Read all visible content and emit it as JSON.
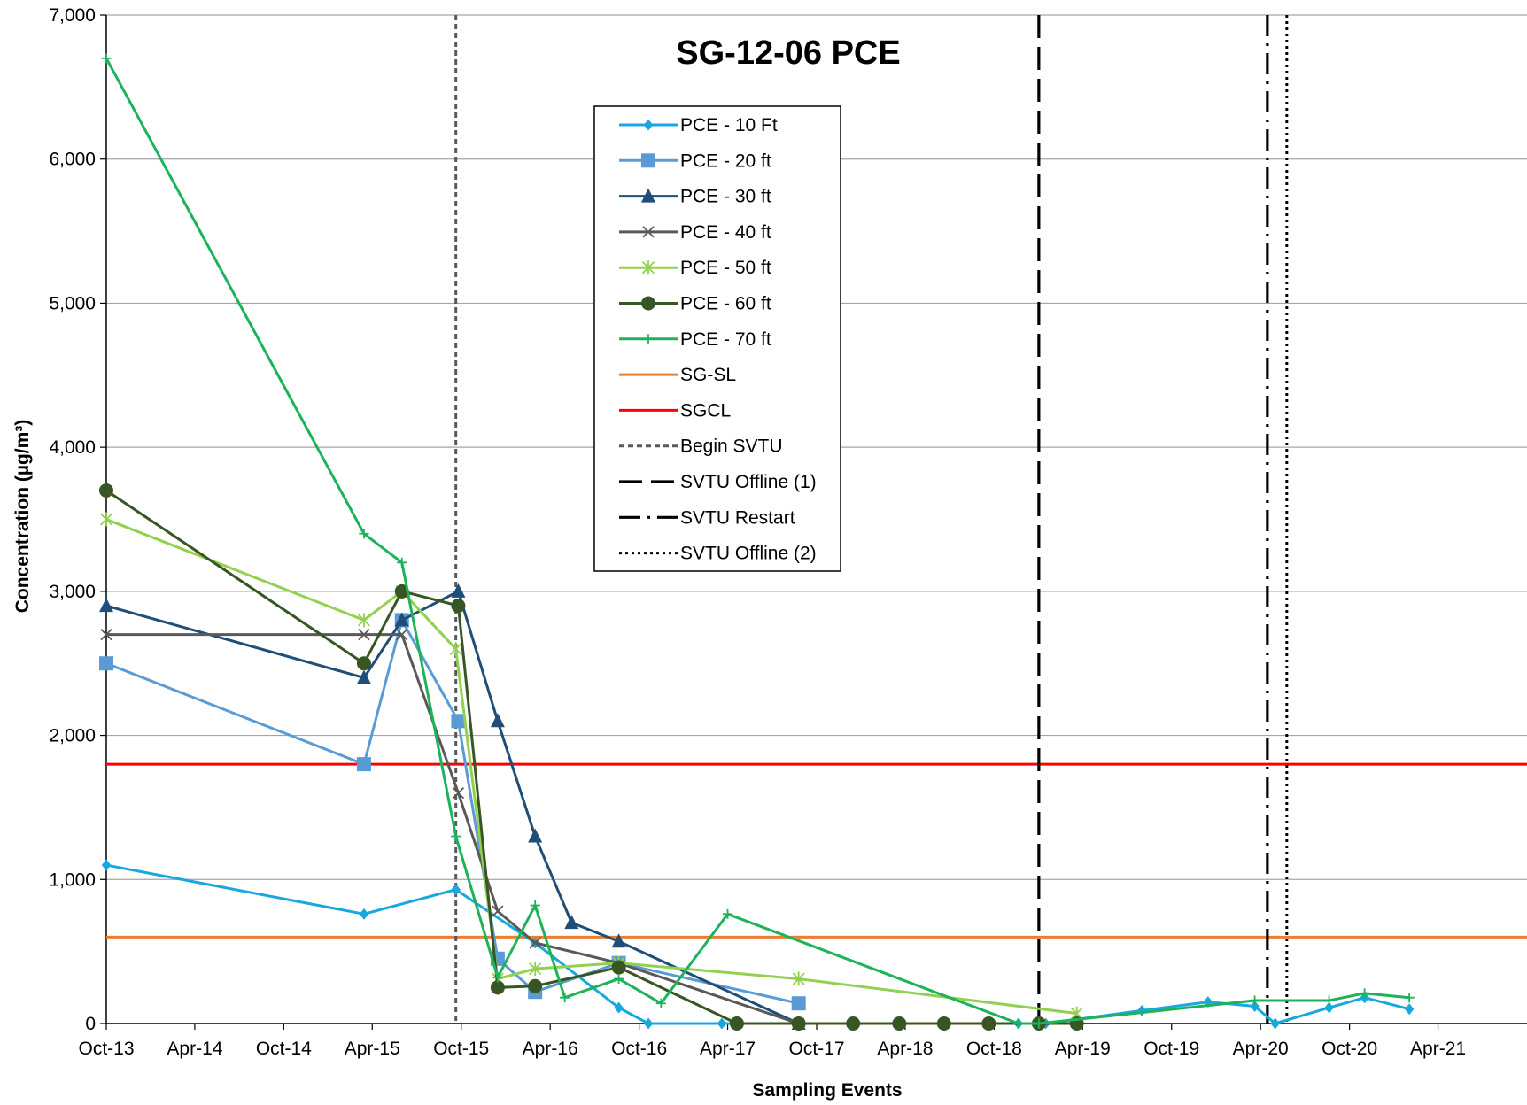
{
  "chart_data": {
    "type": "line",
    "title": "SG-12-06 PCE",
    "xlabel": "Sampling Events",
    "ylabel": "Concentration (µg/m³)",
    "ylim": [
      0,
      7000
    ],
    "yticks": [
      0,
      1000,
      2000,
      3000,
      4000,
      5000,
      6000,
      7000
    ],
    "ytick_labels": [
      "0",
      "1,000",
      "2,000",
      "3,000",
      "4,000",
      "5,000",
      "6,000",
      "7,000"
    ],
    "xlim": [
      "2013-10-01",
      "2021-10-01"
    ],
    "xtick_labels": [
      "Oct-13",
      "Apr-14",
      "Oct-14",
      "Apr-15",
      "Oct-15",
      "Apr-16",
      "Oct-16",
      "Apr-17",
      "Oct-17",
      "Apr-18",
      "Oct-18",
      "Apr-19",
      "Oct-19",
      "Apr-20",
      "Oct-20",
      "Apr-21"
    ],
    "xtick_dates": [
      "2013-10-01",
      "2014-04-01",
      "2014-10-01",
      "2015-04-01",
      "2015-10-01",
      "2016-04-01",
      "2016-10-01",
      "2017-04-01",
      "2017-10-01",
      "2018-04-01",
      "2018-10-01",
      "2019-04-01",
      "2019-10-01",
      "2020-04-01",
      "2020-10-01",
      "2021-04-01"
    ],
    "grid": "horizontal",
    "legend_position": "upper-center",
    "series": [
      {
        "name": "PCE - 10 Ft",
        "color": "#18A8E0",
        "marker": "diamond",
        "points": [
          [
            "2013-10-01",
            1100
          ],
          [
            "2015-03-15",
            760
          ],
          [
            "2015-09-20",
            930
          ],
          [
            "2016-03-01",
            560
          ],
          [
            "2016-08-20",
            110
          ],
          [
            "2016-10-20",
            0
          ],
          [
            "2017-03-20",
            0
          ],
          [
            "2017-08-25",
            0
          ],
          [
            "2018-11-20",
            0
          ],
          [
            "2019-01-15",
            0
          ],
          [
            "2019-08-01",
            90
          ],
          [
            "2019-12-15",
            150
          ],
          [
            "2020-03-20",
            120
          ],
          [
            "2020-05-01",
            0
          ],
          [
            "2020-08-20",
            110
          ],
          [
            "2020-11-01",
            180
          ],
          [
            "2021-02-01",
            100
          ]
        ]
      },
      {
        "name": "PCE - 20 ft",
        "color": "#5B9BD5",
        "marker": "square",
        "points": [
          [
            "2013-10-01",
            2500
          ],
          [
            "2015-03-15",
            1800
          ],
          [
            "2015-06-01",
            2800
          ],
          [
            "2015-09-25",
            2100
          ],
          [
            "2015-12-15",
            450
          ],
          [
            "2016-03-01",
            220
          ],
          [
            "2016-08-20",
            420
          ],
          [
            "2017-08-25",
            140
          ]
        ]
      },
      {
        "name": "PCE - 30 ft",
        "color": "#1F4E79",
        "marker": "triangle",
        "points": [
          [
            "2013-10-01",
            2900
          ],
          [
            "2015-03-15",
            2400
          ],
          [
            "2015-06-01",
            2800
          ],
          [
            "2015-09-25",
            3000
          ],
          [
            "2015-12-15",
            2100
          ],
          [
            "2016-03-01",
            1300
          ],
          [
            "2016-05-15",
            700
          ],
          [
            "2016-08-20",
            570
          ],
          [
            "2017-08-25",
            0
          ]
        ]
      },
      {
        "name": "PCE - 40 ft",
        "color": "#595959",
        "marker": "x",
        "points": [
          [
            "2013-10-01",
            2700
          ],
          [
            "2015-03-15",
            2700
          ],
          [
            "2015-06-01",
            2700
          ],
          [
            "2015-09-25",
            1600
          ],
          [
            "2015-12-15",
            780
          ],
          [
            "2016-03-01",
            560
          ],
          [
            "2016-08-20",
            420
          ],
          [
            "2017-08-25",
            0
          ]
        ]
      },
      {
        "name": "PCE - 50 ft",
        "color": "#92D050",
        "marker": "star",
        "points": [
          [
            "2013-10-01",
            3500
          ],
          [
            "2015-03-15",
            2800
          ],
          [
            "2015-06-01",
            3000
          ],
          [
            "2015-09-20",
            2600
          ],
          [
            "2015-12-15",
            310
          ],
          [
            "2016-03-01",
            380
          ],
          [
            "2016-08-20",
            420
          ],
          [
            "2017-08-25",
            310
          ],
          [
            "2019-03-20",
            70
          ]
        ]
      },
      {
        "name": "PCE - 60 ft",
        "color": "#375623",
        "marker": "circle",
        "points": [
          [
            "2013-10-01",
            3700
          ],
          [
            "2015-03-15",
            2500
          ],
          [
            "2015-06-01",
            3000
          ],
          [
            "2015-09-25",
            2900
          ],
          [
            "2015-12-15",
            250
          ],
          [
            "2016-03-01",
            260
          ],
          [
            "2016-08-20",
            390
          ],
          [
            "2017-04-20",
            0
          ],
          [
            "2017-08-25",
            0
          ],
          [
            "2017-12-15",
            0
          ],
          [
            "2018-03-20",
            0
          ],
          [
            "2018-06-20",
            0
          ],
          [
            "2018-09-20",
            0
          ],
          [
            "2019-01-01",
            0
          ],
          [
            "2019-03-20",
            0
          ]
        ]
      },
      {
        "name": "PCE - 70 ft",
        "color": "#1DB35A",
        "marker": "plus",
        "points": [
          [
            "2013-10-01",
            6700
          ],
          [
            "2015-03-15",
            3400
          ],
          [
            "2015-06-01",
            3200
          ],
          [
            "2015-09-20",
            1300
          ],
          [
            "2015-12-15",
            320
          ],
          [
            "2016-03-01",
            820
          ],
          [
            "2016-05-01",
            180
          ],
          [
            "2016-08-20",
            310
          ],
          [
            "2016-11-15",
            140
          ],
          [
            "2017-04-01",
            760
          ],
          [
            "2018-11-20",
            0
          ],
          [
            "2019-01-01",
            0
          ],
          [
            "2020-03-20",
            160
          ],
          [
            "2020-08-20",
            160
          ],
          [
            "2020-11-01",
            210
          ],
          [
            "2021-02-01",
            180
          ]
        ]
      }
    ],
    "reference_lines": [
      {
        "name": "SG-SL",
        "type": "horizontal",
        "value": 600,
        "color": "#ED7D31",
        "style": "solid"
      },
      {
        "name": "SGCL",
        "type": "horizontal",
        "value": 1800,
        "color": "#FF0000",
        "style": "solid"
      },
      {
        "name": "Begin SVTU",
        "type": "vertical",
        "date": "2015-09-20",
        "color": "#595959",
        "style": "short-dash"
      },
      {
        "name": "SVTU Offline (1)",
        "type": "vertical",
        "date": "2019-01-01",
        "color": "#000000",
        "style": "long-dash"
      },
      {
        "name": "SVTU Restart",
        "type": "vertical",
        "date": "2020-04-15",
        "color": "#000000",
        "style": "dash-dot"
      },
      {
        "name": "SVTU Offline (2)",
        "type": "vertical",
        "date": "2020-05-25",
        "color": "#000000",
        "style": "dot"
      }
    ]
  }
}
